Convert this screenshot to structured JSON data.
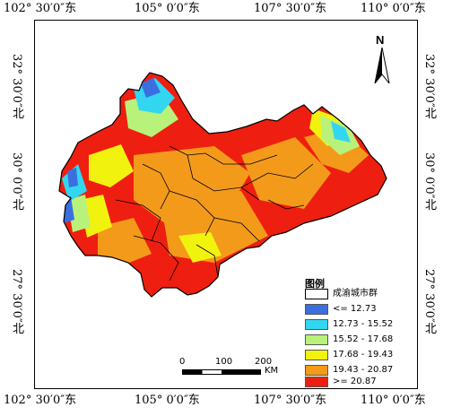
{
  "map": {
    "x_ticks": [
      "102° 30′0″东",
      "105° 0′0″东",
      "107° 30′0″东",
      "110° 0′0″东"
    ],
    "y_ticks": [
      "32° 30′0″北",
      "30° 0′0″北",
      "27° 30′0″北"
    ],
    "north_label": "N",
    "legend": {
      "title": "图例",
      "boundary_label": "成渝城市群",
      "classes": [
        {
          "label": "<= 12.73",
          "color": "#3b6fe0"
        },
        {
          "label": "12.73 - 15.52",
          "color": "#33d6f0"
        },
        {
          "label": "15.52 - 17.68",
          "color": "#b9f27a"
        },
        {
          "label": "17.68 - 19.43",
          "color": "#f2f20f"
        },
        {
          "label": "19.43 - 20.87",
          "color": "#f39a1b"
        },
        {
          "label": ">= 20.87",
          "color": "#ee1f10"
        }
      ]
    },
    "scalebar": {
      "ticks": [
        "0",
        "100",
        "200"
      ],
      "unit": "KM"
    }
  }
}
